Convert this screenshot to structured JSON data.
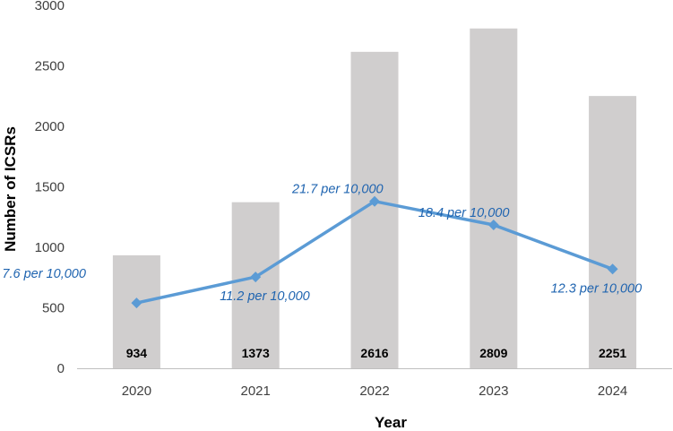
{
  "chart_data": {
    "type": "bar",
    "categories": [
      "2020",
      "2021",
      "2022",
      "2023",
      "2024"
    ],
    "xlabel": "Year",
    "ylabel": "Number of ICSRs",
    "ylim": [
      0,
      3000
    ],
    "yticks": [
      0,
      500,
      1000,
      1500,
      2000,
      2500,
      3000
    ],
    "grid": false,
    "legend": "none",
    "series": [
      {
        "type": "bar",
        "values": [
          934,
          1373,
          2616,
          2809,
          2251
        ],
        "data_labels": [
          "934",
          "1373",
          "2616",
          "2809",
          "2251"
        ],
        "color": "#d0cece"
      },
      {
        "type": "line",
        "values": [
          540,
          755,
          1380,
          1185,
          820
        ],
        "data_labels": [
          "7.6 per 10,000",
          "11.2 per 10,000",
          "21.7 per 10,000",
          "18.4 per 10,000",
          "12.3 per 10,000"
        ],
        "marker": "diamond",
        "color": "#5b9bd5"
      }
    ]
  }
}
